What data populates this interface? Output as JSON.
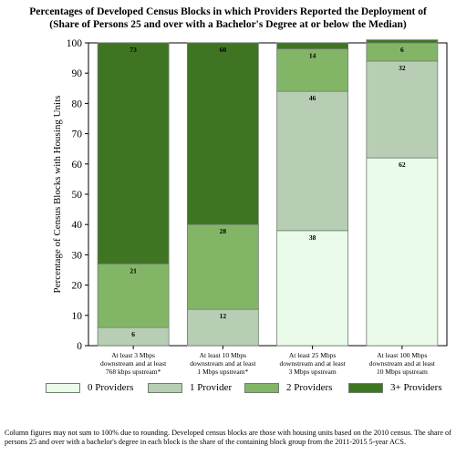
{
  "title_lines": [
    "Percentages of Developed Census Blocks in which Providers Reported the Deployment of",
    "(Share of Persons 25 and over with a Bachelor's Degree at or below the Median)"
  ],
  "footnote": "Column figures may not sum to 100% due to rounding.  Developed census blocks are those with housing units based on the 2010 census.  The share of persons 25 and over with a bachelor's degree in each block is the share of the containing block group from the 2011-2015 5-year ACS.",
  "colors": {
    "0 Providers": "#eafbea",
    "1 Provider": "#b7cdb4",
    "2 Providers": "#83b567",
    "3+ Providers": "#3f7522",
    "border": "#6f7f6f"
  },
  "chart_data": {
    "type": "bar",
    "stacked": true,
    "title": "Percentages of Developed Census Blocks in which Providers Reported the Deployment of (Share of Persons 25 and over with a Bachelor's Degree at or below the Median)",
    "xlabel": "",
    "ylabel": "Percentage of Census Blocks with Housing Units",
    "ylim": [
      0,
      100
    ],
    "yticks": [
      0,
      10,
      20,
      30,
      40,
      50,
      60,
      70,
      80,
      90,
      100
    ],
    "grid": false,
    "legend_position": "bottom",
    "categories": [
      [
        "At least 3 Mbps",
        "downstream and at least",
        "768 kbps upstream*"
      ],
      [
        "At least 10 Mbps",
        "downstream and at least",
        "1 Mbps upstream*"
      ],
      [
        "At least 25 Mbps",
        "downstream and at least",
        "3 Mbps upstream"
      ],
      [
        "At least 100 Mbps",
        "downstream and at least",
        "10 Mbps upstream"
      ]
    ],
    "series": [
      {
        "name": "0 Providers",
        "values": [
          0,
          0,
          38,
          62
        ],
        "labels": [
          "",
          "",
          "38",
          "62"
        ]
      },
      {
        "name": "1 Provider",
        "values": [
          6,
          12,
          46,
          32
        ],
        "labels": [
          "6",
          "12",
          "46",
          "32"
        ]
      },
      {
        "name": "2 Providers",
        "values": [
          21,
          28,
          14,
          6
        ],
        "labels": [
          "21",
          "28",
          "14",
          "6"
        ]
      },
      {
        "name": "3+ Providers",
        "values": [
          73,
          60,
          2,
          1
        ],
        "labels": [
          "73",
          "60",
          "",
          ""
        ]
      }
    ]
  }
}
